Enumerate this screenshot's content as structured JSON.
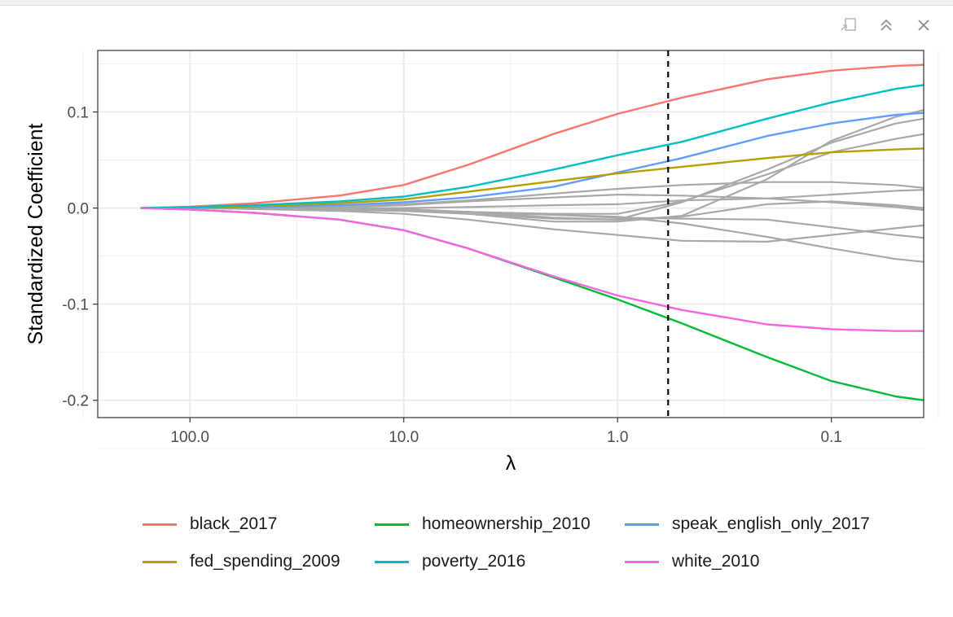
{
  "toolbar": {
    "buttons": [
      {
        "name": "export-icon",
        "label": "Export"
      },
      {
        "name": "collapse-icon",
        "label": "Collapse"
      },
      {
        "name": "close-icon",
        "label": "Close"
      }
    ]
  },
  "chart_data": {
    "type": "line",
    "title": "",
    "xlabel": "λ",
    "ylabel": "Standardized Coefficient",
    "x_scale": "log10, reversed",
    "xlim": [
      0.037,
      270
    ],
    "ylim": [
      -0.218,
      0.164
    ],
    "x_ticks": [
      {
        "value": 100,
        "label": "100.0"
      },
      {
        "value": 10,
        "label": "10.0"
      },
      {
        "value": 1,
        "label": "1.0"
      },
      {
        "value": 0.1,
        "label": "0.1"
      }
    ],
    "y_ticks": [
      {
        "value": 0.1,
        "label": "0.1"
      },
      {
        "value": 0.0,
        "label": "0.0"
      },
      {
        "value": -0.1,
        "label": "-0.1"
      },
      {
        "value": -0.2,
        "label": "-0.2"
      }
    ],
    "grid": true,
    "vline": {
      "x": 0.58,
      "style": "dashed",
      "color": "#000000"
    },
    "legend": {
      "position": "bottom",
      "columns": 3
    },
    "x": [
      170,
      100,
      50,
      20,
      10,
      5,
      2,
      1,
      0.5,
      0.2,
      0.1,
      0.05,
      0.037
    ],
    "series": [
      {
        "name": "black_2017",
        "color": "#F8766D",
        "highlight": true,
        "values": [
          0.0,
          0.0015,
          0.005,
          0.013,
          0.024,
          0.045,
          0.077,
          0.098,
          0.115,
          0.134,
          0.143,
          0.148,
          0.149
        ]
      },
      {
        "name": "homeownership_2010",
        "color": "#00BA38",
        "highlight": true,
        "values": [
          0.0,
          -0.0015,
          -0.005,
          -0.012,
          -0.023,
          -0.042,
          -0.072,
          -0.095,
          -0.12,
          -0.155,
          -0.18,
          -0.196,
          -0.2
        ]
      },
      {
        "name": "speak_english_only_2017",
        "color": "#619CFF",
        "highlight": true,
        "values": [
          0.0,
          0.0005,
          0.001,
          0.003,
          0.006,
          0.011,
          0.022,
          0.037,
          0.052,
          0.075,
          0.088,
          0.097,
          0.099
        ]
      },
      {
        "name": "fed_spending_2009",
        "color": "#B79F00",
        "highlight": true,
        "values": [
          0.0,
          0.0007,
          0.002,
          0.005,
          0.009,
          0.017,
          0.028,
          0.036,
          0.043,
          0.052,
          0.058,
          0.061,
          0.062
        ]
      },
      {
        "name": "poverty_2016",
        "color": "#00BFC4",
        "highlight": true,
        "values": [
          0.0,
          0.001,
          0.003,
          0.007,
          0.012,
          0.022,
          0.04,
          0.055,
          0.069,
          0.093,
          0.11,
          0.124,
          0.128
        ]
      },
      {
        "name": "white_2010",
        "color": "#F564E3",
        "highlight": true,
        "values": [
          0.0,
          -0.0015,
          -0.005,
          -0.012,
          -0.023,
          -0.042,
          -0.071,
          -0.091,
          -0.106,
          -0.121,
          -0.126,
          -0.128,
          -0.128
        ]
      },
      {
        "name": "",
        "color": "#A8A8A8",
        "highlight": false,
        "values": [
          0.0,
          0.0,
          0.001,
          0.002,
          0.004,
          0.008,
          0.015,
          0.02,
          0.024,
          0.027,
          0.027,
          0.024,
          0.021
        ]
      },
      {
        "name": "",
        "color": "#A8A8A8",
        "highlight": false,
        "values": [
          0.0,
          0.0,
          0.0,
          0.001,
          0.003,
          0.007,
          0.011,
          0.014,
          0.013,
          0.01,
          0.006,
          0.001,
          -0.002
        ]
      },
      {
        "name": "",
        "color": "#A8A8A8",
        "highlight": false,
        "values": [
          0.0,
          0.0,
          0.0,
          0.0,
          -0.001,
          -0.004,
          -0.01,
          -0.012,
          0.006,
          0.04,
          0.068,
          0.088,
          0.093
        ]
      },
      {
        "name": "",
        "color": "#A8A8A8",
        "highlight": false,
        "values": [
          0.0,
          0.0,
          0.0,
          0.0,
          -0.002,
          -0.006,
          -0.014,
          -0.014,
          -0.008,
          0.03,
          0.07,
          0.095,
          0.102
        ]
      },
      {
        "name": "",
        "color": "#A8A8A8",
        "highlight": false,
        "values": [
          0.0,
          0.0,
          0.0,
          -0.001,
          -0.002,
          -0.004,
          -0.006,
          -0.006,
          0.007,
          0.035,
          0.058,
          0.072,
          0.077
        ]
      },
      {
        "name": "",
        "color": "#A8A8A8",
        "highlight": false,
        "values": [
          0.0,
          0.0,
          0.0,
          0.0,
          0.0,
          0.001,
          0.003,
          0.004,
          0.008,
          0.01,
          0.014,
          0.018,
          0.019
        ]
      },
      {
        "name": "",
        "color": "#A8A8A8",
        "highlight": false,
        "values": [
          0.0,
          0.0,
          -0.001,
          -0.002,
          -0.003,
          -0.006,
          -0.011,
          -0.012,
          -0.009,
          0.004,
          0.007,
          0.003,
          0.0
        ]
      },
      {
        "name": "",
        "color": "#A8A8A8",
        "highlight": false,
        "values": [
          0.0,
          0.0,
          0.0,
          -0.001,
          -0.002,
          -0.004,
          -0.007,
          -0.01,
          -0.011,
          -0.012,
          -0.02,
          -0.028,
          -0.031
        ]
      },
      {
        "name": "",
        "color": "#A8A8A8",
        "highlight": false,
        "values": [
          0.0,
          0.0,
          -0.001,
          -0.003,
          -0.006,
          -0.012,
          -0.022,
          -0.028,
          -0.034,
          -0.035,
          -0.028,
          -0.021,
          -0.018
        ]
      },
      {
        "name": "",
        "color": "#A8A8A8",
        "highlight": false,
        "values": [
          0.0,
          0.0,
          0.0,
          -0.001,
          -0.002,
          -0.004,
          -0.007,
          -0.009,
          -0.016,
          -0.03,
          -0.042,
          -0.053,
          -0.056
        ]
      }
    ]
  }
}
